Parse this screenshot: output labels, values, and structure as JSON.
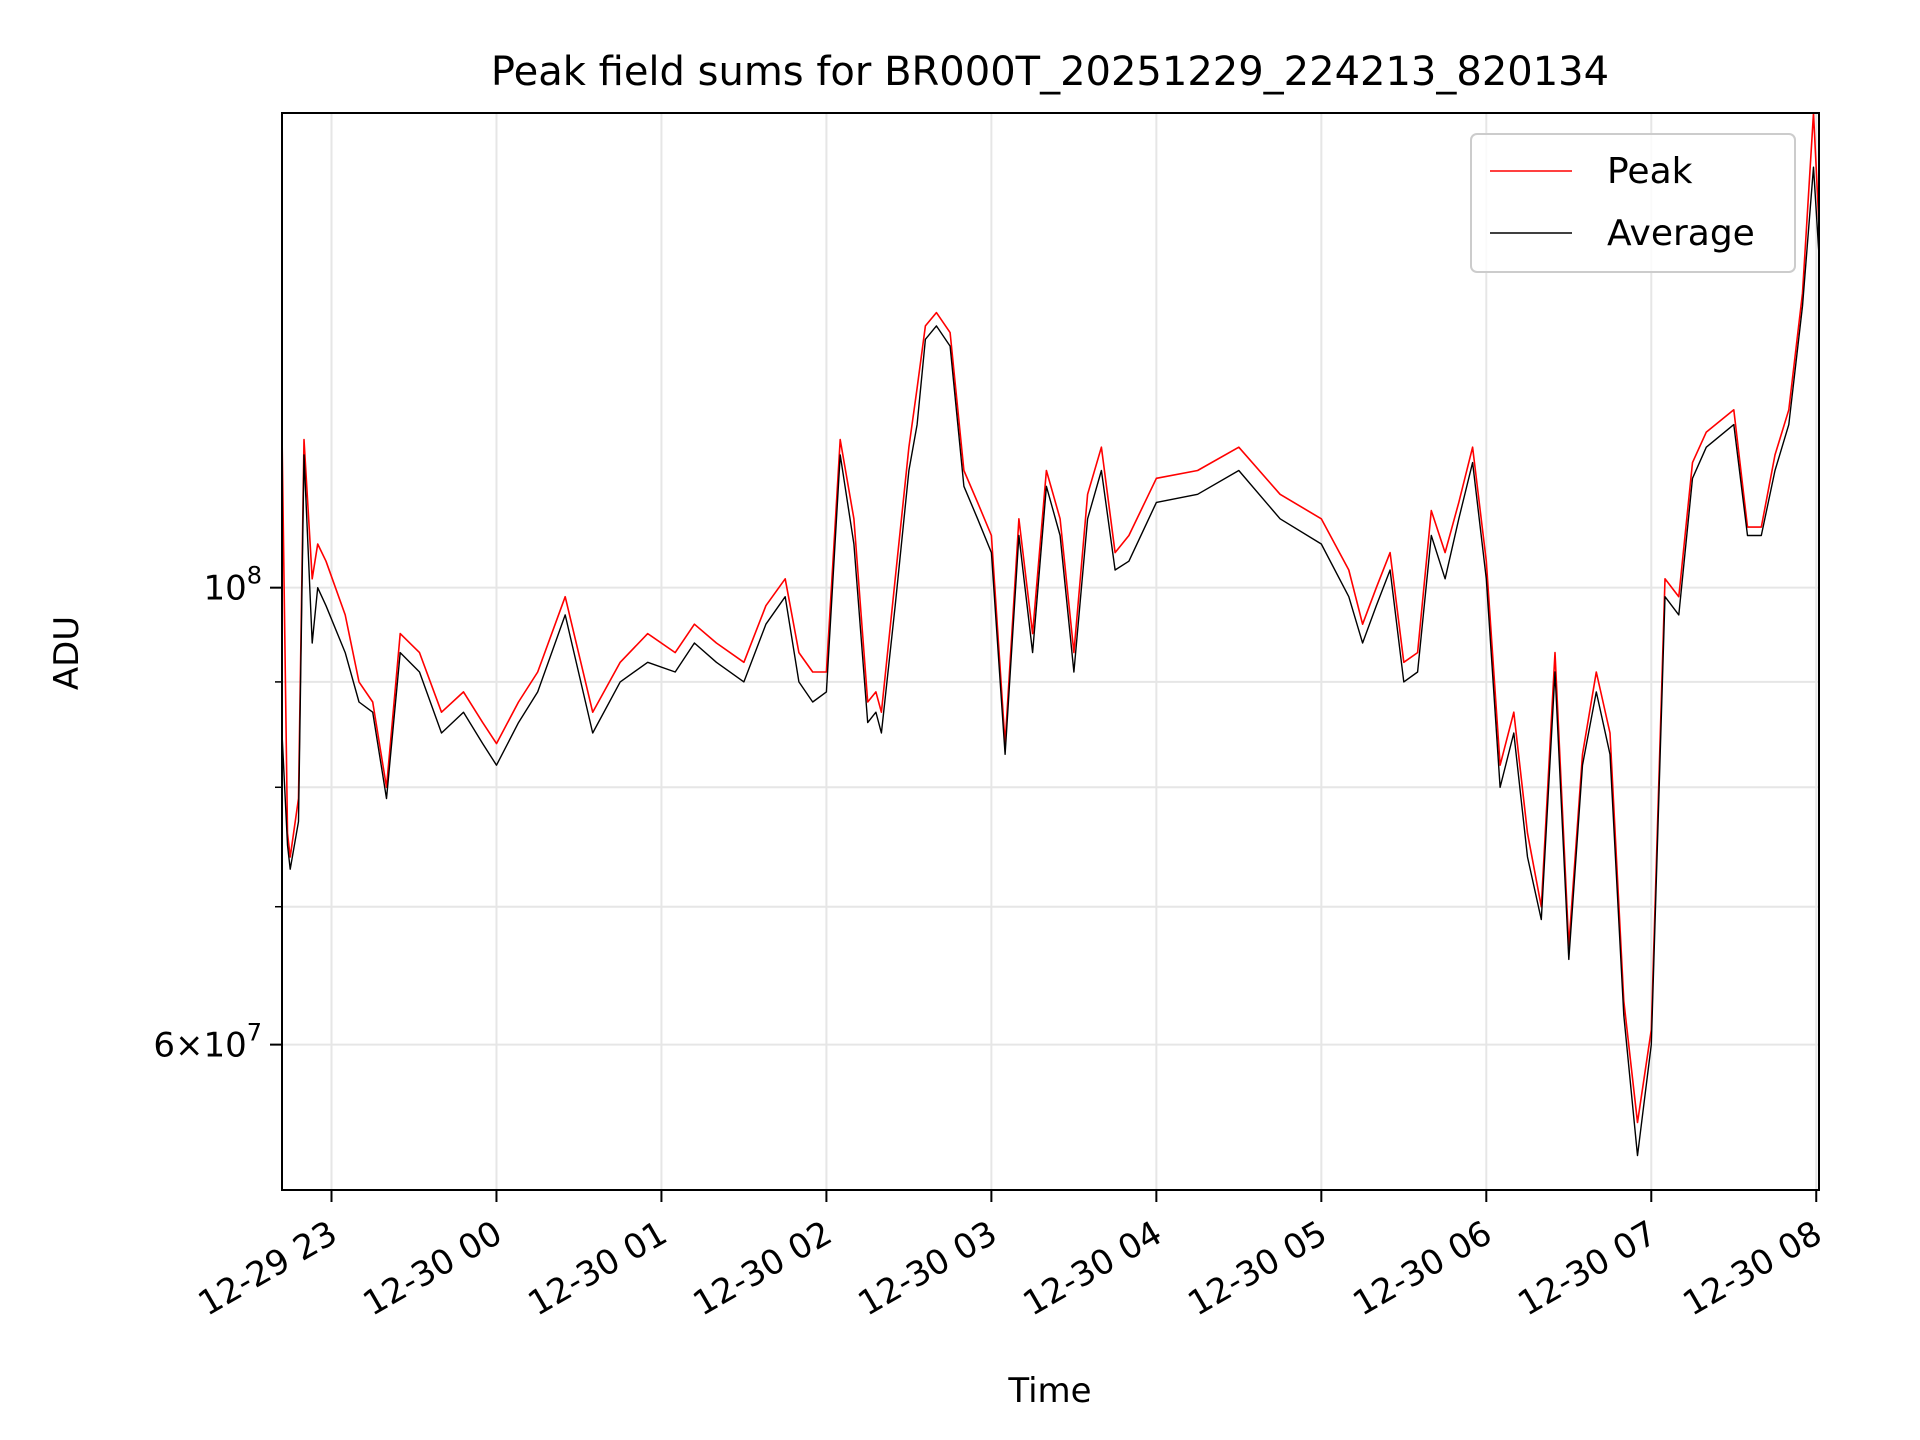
{
  "chart_data": {
    "type": "line",
    "title": "Peak field sums for BR000T_20251229_224213_820134",
    "xlabel": "Time",
    "ylabel": "ADU",
    "y_scale": "log",
    "ylim": [
      51000000,
      170000000
    ],
    "xlim": [
      "12-29 22:42",
      "12-30 08:01"
    ],
    "x_ticks": [
      "12-29 23",
      "12-30 00",
      "12-30 01",
      "12-30 02",
      "12-30 03",
      "12-30 04",
      "12-30 05",
      "12-30 06",
      "12-30 07",
      "12-30 08"
    ],
    "y_ticks_major": [
      {
        "value": 100000000,
        "base": "10",
        "exp": "8",
        "coef": ""
      },
      {
        "value": 60000000,
        "base": "10",
        "exp": "7",
        "coef": "6"
      }
    ],
    "y_ticks_minor": [
      70000000,
      80000000,
      90000000
    ],
    "grid": true,
    "legend_position": "upper right",
    "series": [
      {
        "name": "Peak",
        "color": "#ff0000",
        "x": [
          "12-29 22:42",
          "12-29 22:44",
          "12-29 22:45",
          "12-29 22:48",
          "12-29 22:50",
          "12-29 22:53",
          "12-29 22:55",
          "12-29 22:58",
          "12-29 23:05",
          "12-29 23:10",
          "12-29 23:15",
          "12-29 23:20",
          "12-29 23:25",
          "12-29 23:32",
          "12-29 23:40",
          "12-29 23:48",
          "12-29 23:55",
          "12-30 00:00",
          "12-30 00:08",
          "12-30 00:15",
          "12-30 00:25",
          "12-30 00:35",
          "12-30 00:45",
          "12-30 00:55",
          "12-30 01:05",
          "12-30 01:12",
          "12-30 01:20",
          "12-30 01:30",
          "12-30 01:38",
          "12-30 01:45",
          "12-30 01:50",
          "12-30 01:55",
          "12-30 02:00",
          "12-30 02:05",
          "12-30 02:10",
          "12-30 02:15",
          "12-30 02:18",
          "12-30 02:20",
          "12-30 02:25",
          "12-30 02:30",
          "12-30 02:33",
          "12-30 02:36",
          "12-30 02:40",
          "12-30 02:45",
          "12-30 02:50",
          "12-30 02:55",
          "12-30 03:00",
          "12-30 03:05",
          "12-30 03:10",
          "12-30 03:15",
          "12-30 03:20",
          "12-30 03:25",
          "12-30 03:30",
          "12-30 03:35",
          "12-30 03:40",
          "12-30 03:45",
          "12-30 03:50",
          "12-30 04:00",
          "12-30 04:15",
          "12-30 04:30",
          "12-30 04:45",
          "12-30 05:00",
          "12-30 05:10",
          "12-30 05:15",
          "12-30 05:20",
          "12-30 05:25",
          "12-30 05:30",
          "12-30 05:35",
          "12-30 05:40",
          "12-30 05:45",
          "12-30 05:50",
          "12-30 05:55",
          "12-30 06:00",
          "12-30 06:05",
          "12-30 06:10",
          "12-30 06:15",
          "12-30 06:20",
          "12-30 06:25",
          "12-30 06:30",
          "12-30 06:35",
          "12-30 06:40",
          "12-30 06:45",
          "12-30 06:50",
          "12-30 06:55",
          "12-30 07:00",
          "12-30 07:05",
          "12-30 07:10",
          "12-30 07:15",
          "12-30 07:20",
          "12-30 07:30",
          "12-30 07:35",
          "12-30 07:40",
          "12-30 07:45",
          "12-30 07:50",
          "12-30 07:55",
          "12-30 07:59",
          "12-30 08:01"
        ],
        "y": [
          119000000,
          76000000,
          74000000,
          79000000,
          118000000,
          101000000,
          105000000,
          103000000,
          97000000,
          90000000,
          88000000,
          80000000,
          95000000,
          93000000,
          87000000,
          89000000,
          86000000,
          84000000,
          88000000,
          91000000,
          99000000,
          87000000,
          92000000,
          95000000,
          93000000,
          96000000,
          94000000,
          92000000,
          98000000,
          101000000,
          93000000,
          91000000,
          91000000,
          118000000,
          108000000,
          88000000,
          89000000,
          87000000,
          101000000,
          117000000,
          125000000,
          134000000,
          136000000,
          133000000,
          114000000,
          110000000,
          106000000,
          84000000,
          108000000,
          95000000,
          114000000,
          108000000,
          93000000,
          111000000,
          117000000,
          104000000,
          106000000,
          113000000,
          114000000,
          117000000,
          111000000,
          108000000,
          102000000,
          96000000,
          100000000,
          104000000,
          92000000,
          93000000,
          109000000,
          104000000,
          110000000,
          117000000,
          103000000,
          82000000,
          87000000,
          76000000,
          70000000,
          93000000,
          67000000,
          83000000,
          91000000,
          85000000,
          63000000,
          55000000,
          61000000,
          101000000,
          99000000,
          115000000,
          119000000,
          122000000,
          107000000,
          107000000,
          116000000,
          122000000,
          139000000,
          170000000,
          150000000
        ]
      },
      {
        "name": "Average",
        "color": "#000000",
        "x": [
          "12-29 22:42",
          "12-29 22:44",
          "12-29 22:45",
          "12-29 22:48",
          "12-29 22:50",
          "12-29 22:53",
          "12-29 22:55",
          "12-29 22:58",
          "12-29 23:05",
          "12-29 23:10",
          "12-29 23:15",
          "12-29 23:20",
          "12-29 23:25",
          "12-29 23:32",
          "12-29 23:40",
          "12-29 23:48",
          "12-29 23:55",
          "12-30 00:00",
          "12-30 00:08",
          "12-30 00:15",
          "12-30 00:25",
          "12-30 00:35",
          "12-30 00:45",
          "12-30 00:55",
          "12-30 01:05",
          "12-30 01:12",
          "12-30 01:20",
          "12-30 01:30",
          "12-30 01:38",
          "12-30 01:45",
          "12-30 01:50",
          "12-30 01:55",
          "12-30 02:00",
          "12-30 02:05",
          "12-30 02:10",
          "12-30 02:15",
          "12-30 02:18",
          "12-30 02:20",
          "12-30 02:25",
          "12-30 02:30",
          "12-30 02:33",
          "12-30 02:36",
          "12-30 02:40",
          "12-30 02:45",
          "12-30 02:50",
          "12-30 02:55",
          "12-30 03:00",
          "12-30 03:05",
          "12-30 03:10",
          "12-30 03:15",
          "12-30 03:20",
          "12-30 03:25",
          "12-30 03:30",
          "12-30 03:35",
          "12-30 03:40",
          "12-30 03:45",
          "12-30 03:50",
          "12-30 04:00",
          "12-30 04:15",
          "12-30 04:30",
          "12-30 04:45",
          "12-30 05:00",
          "12-30 05:10",
          "12-30 05:15",
          "12-30 05:20",
          "12-30 05:25",
          "12-30 05:30",
          "12-30 05:35",
          "12-30 05:40",
          "12-30 05:45",
          "12-30 05:50",
          "12-30 05:55",
          "12-30 06:00",
          "12-30 06:05",
          "12-30 06:10",
          "12-30 06:15",
          "12-30 06:20",
          "12-30 06:25",
          "12-30 06:30",
          "12-30 06:35",
          "12-30 06:40",
          "12-30 06:45",
          "12-30 06:50",
          "12-30 06:55",
          "12-30 07:00",
          "12-30 07:05",
          "12-30 07:10",
          "12-30 07:15",
          "12-30 07:20",
          "12-30 07:30",
          "12-30 07:35",
          "12-30 07:40",
          "12-30 07:45",
          "12-30 07:50",
          "12-30 07:55",
          "12-30 07:59",
          "12-30 08:01"
        ],
        "y": [
          85000000,
          75000000,
          73000000,
          77000000,
          116000000,
          94000000,
          100000000,
          98000000,
          93000000,
          88000000,
          87000000,
          79000000,
          93000000,
          91000000,
          85000000,
          87000000,
          84000000,
          82000000,
          86000000,
          89000000,
          97000000,
          85000000,
          90000000,
          92000000,
          91000000,
          94000000,
          92000000,
          90000000,
          96000000,
          99000000,
          90000000,
          88000000,
          89000000,
          116000000,
          105000000,
          86000000,
          87000000,
          85000000,
          98000000,
          114000000,
          120000000,
          132000000,
          134000000,
          131000000,
          112000000,
          108000000,
          104000000,
          83000000,
          106000000,
          93000000,
          112000000,
          106000000,
          91000000,
          108000000,
          114000000,
          102000000,
          103000000,
          110000000,
          111000000,
          114000000,
          108000000,
          105000000,
          99000000,
          94000000,
          98000000,
          102000000,
          90000000,
          91000000,
          106000000,
          101000000,
          108000000,
          115000000,
          101000000,
          80000000,
          85000000,
          74000000,
          69000000,
          91000000,
          66000000,
          82000000,
          89000000,
          83000000,
          62000000,
          53000000,
          60000000,
          99000000,
          97000000,
          113000000,
          117000000,
          120000000,
          106000000,
          106000000,
          114000000,
          120000000,
          137000000,
          160000000,
          145000000
        ]
      }
    ]
  }
}
